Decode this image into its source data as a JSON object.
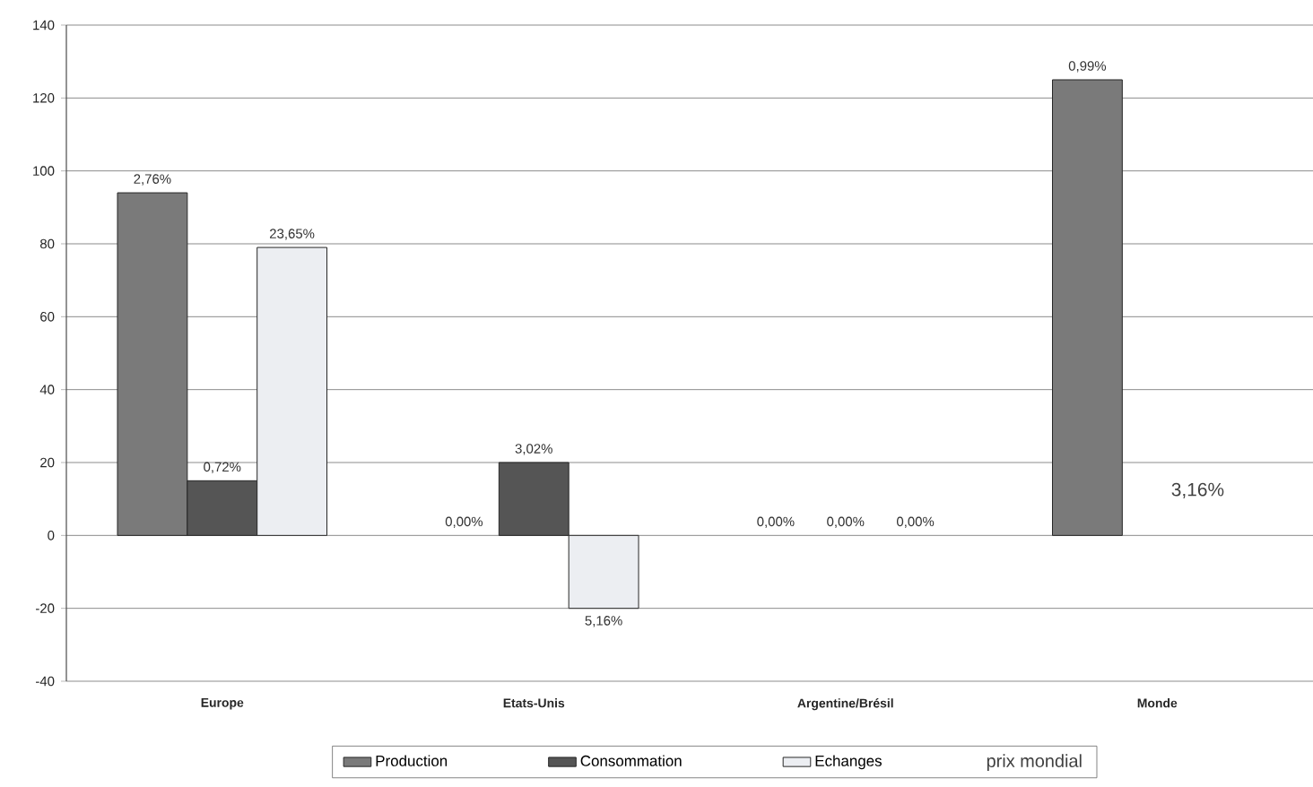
{
  "chart_data": {
    "type": "bar",
    "categories": [
      "Europe",
      "Etats-Unis",
      "Argentine/Brésil",
      "Monde"
    ],
    "series": [
      {
        "name": "Production",
        "color": "#7a7a7a",
        "values": [
          94,
          0,
          0,
          125
        ]
      },
      {
        "name": "Consommation",
        "color": "#555555",
        "values": [
          15,
          20,
          0,
          null
        ]
      },
      {
        "name": "Echanges",
        "color": "#eceef2",
        "values": [
          79,
          -20,
          0,
          null
        ]
      }
    ],
    "ylim": [
      -40,
      140
    ],
    "yticks": [
      -40,
      -20,
      0,
      20,
      40,
      60,
      80,
      100,
      120,
      140
    ],
    "grid": "y",
    "legend": "bottom",
    "annotations": [
      "2,76%",
      "0,00%",
      "0,00%",
      "0,99%",
      "0,72%",
      "3,02%",
      "0,00%",
      "23,65%",
      "5,16%",
      "0,00%",
      "3,16%",
      "prix mondial"
    ]
  }
}
